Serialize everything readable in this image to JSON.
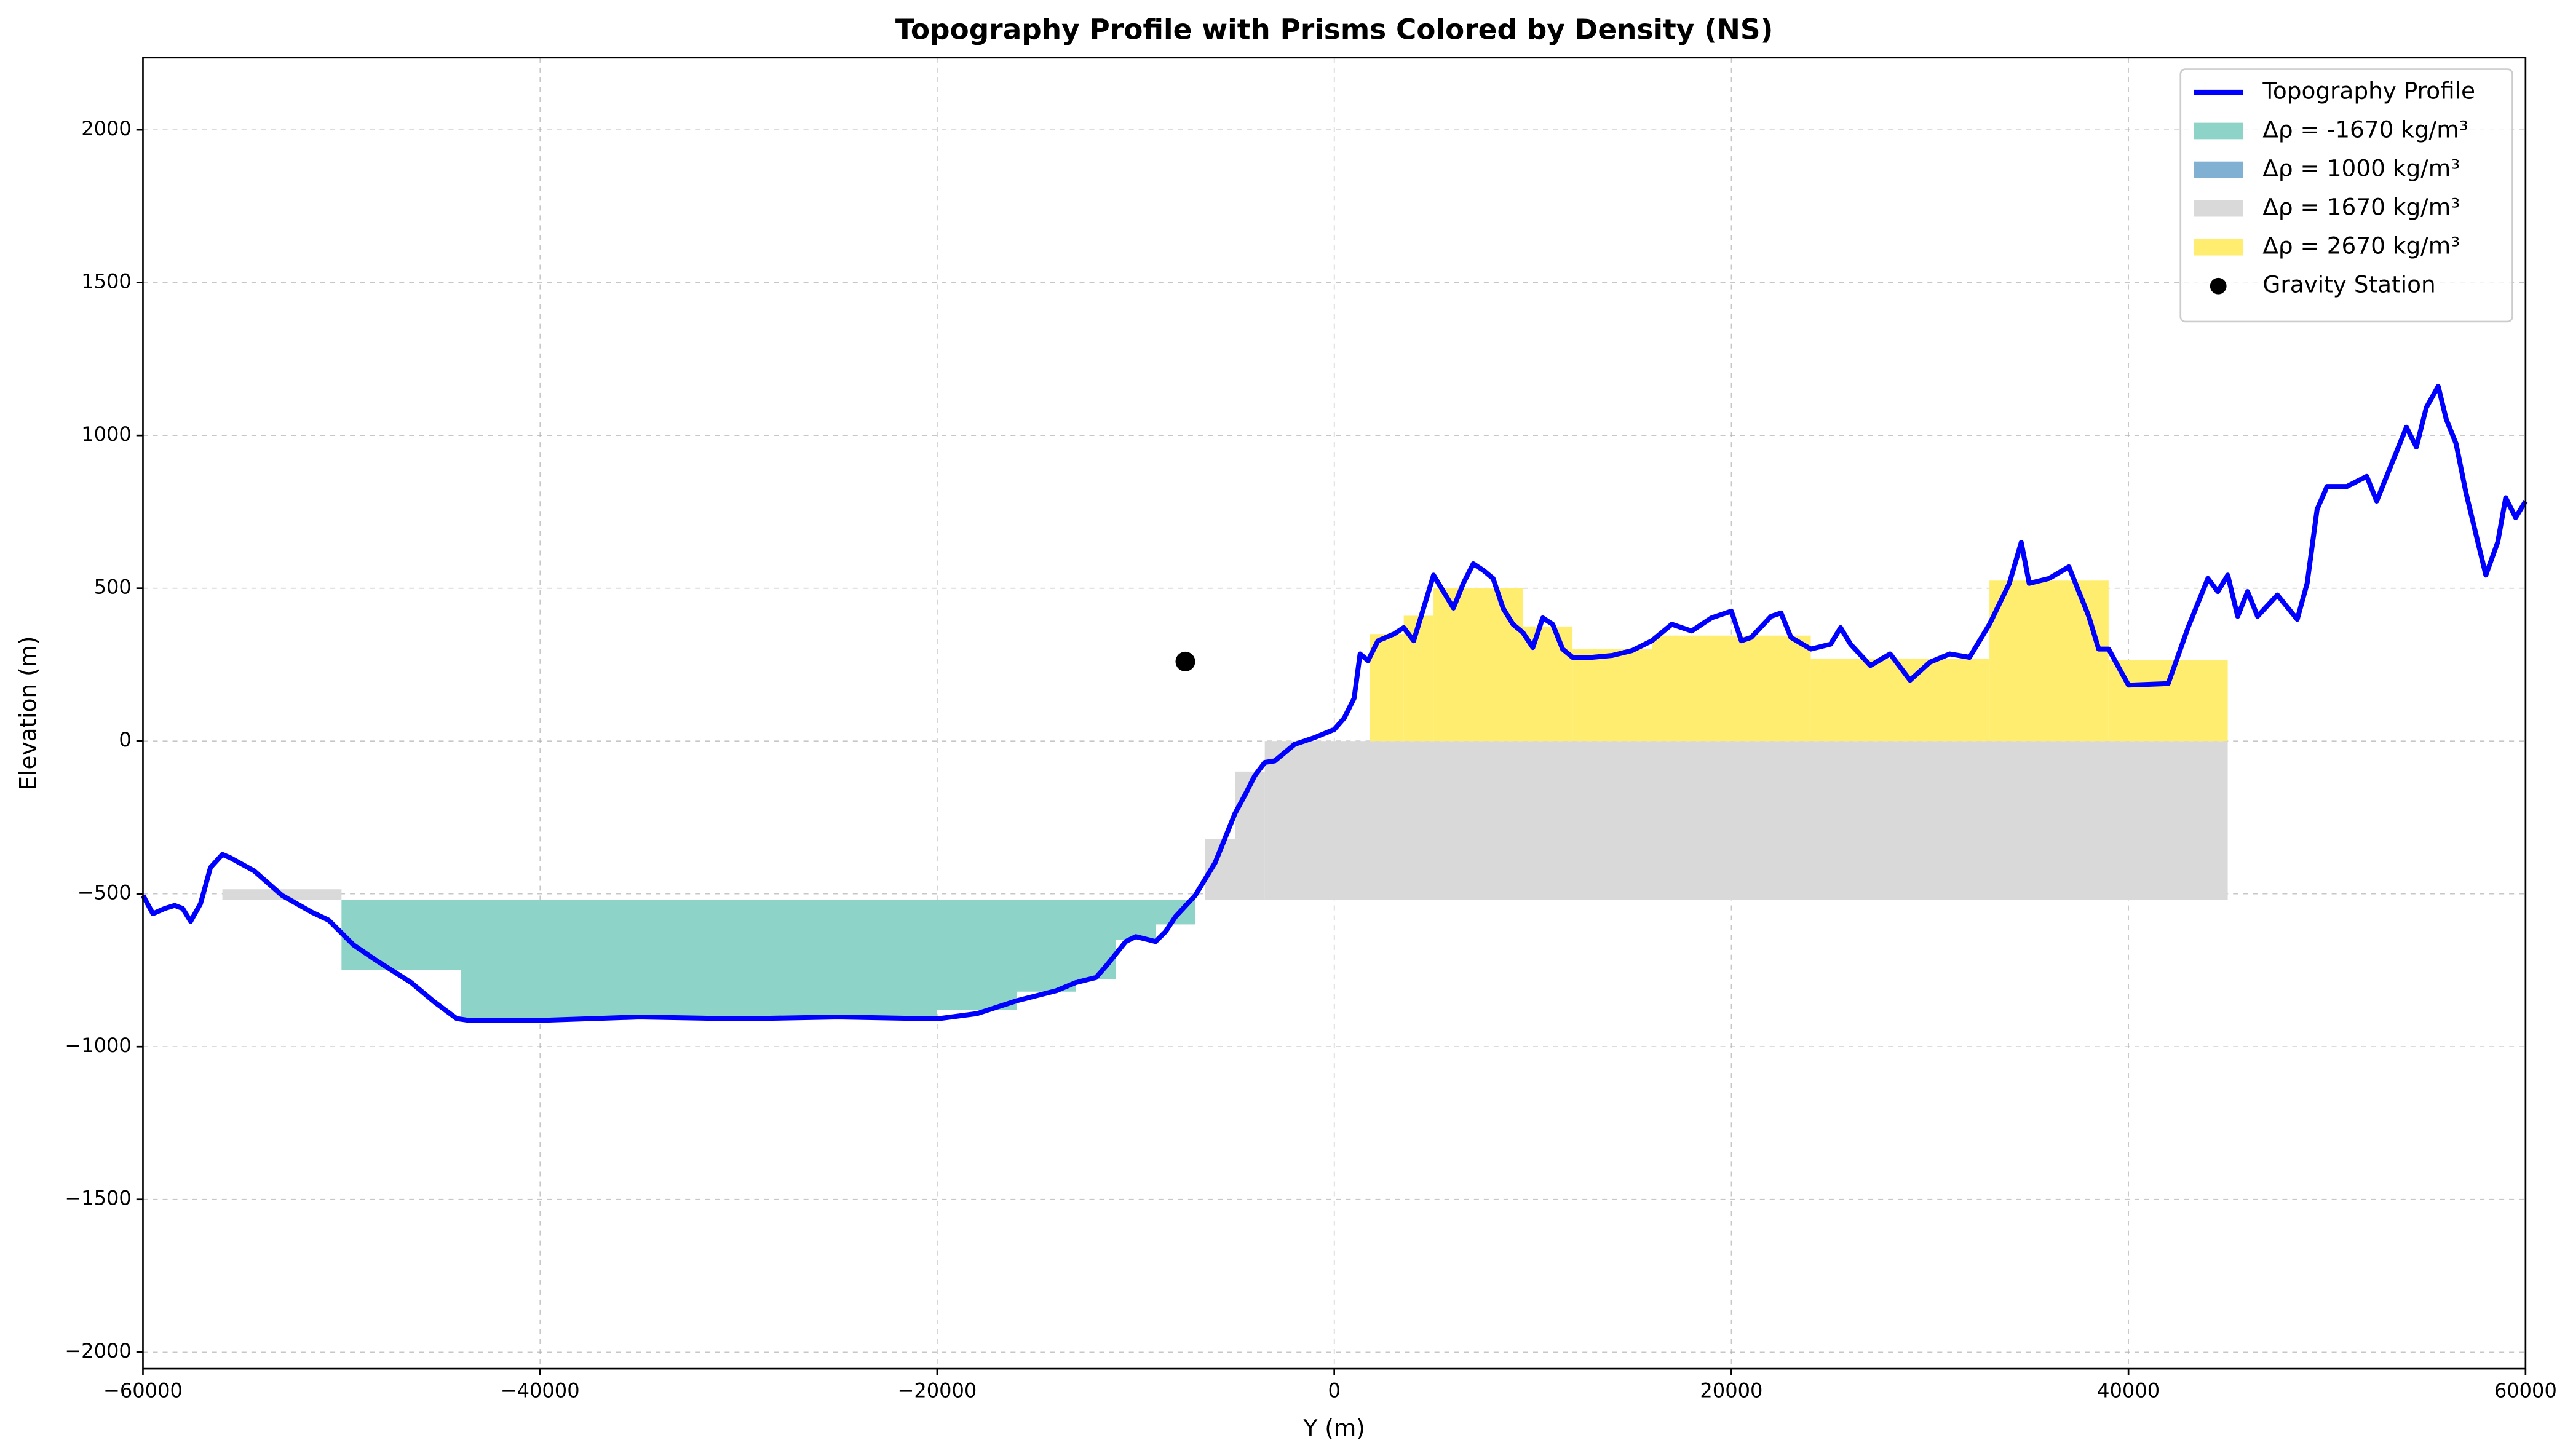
{
  "chart_data": {
    "type": "line",
    "title": "Topography Profile with Prisms Colored by Density (NS)",
    "xlabel": "Y (m)",
    "ylabel": "Elevation (m)",
    "xlim": [
      -60000,
      60000
    ],
    "ylim": [
      -2054,
      2236
    ],
    "xticks": [
      {
        "value": -60000,
        "label": "−60000"
      },
      {
        "value": -40000,
        "label": "−40000"
      },
      {
        "value": -20000,
        "label": "−20000"
      },
      0,
      20000,
      40000,
      60000
    ],
    "yticks": [
      {
        "value": -2000,
        "label": "−2000"
      },
      {
        "value": -1500,
        "label": "−1500"
      },
      {
        "value": -1000,
        "label": "−1000"
      },
      {
        "value": -500,
        "label": "−500"
      },
      0,
      500,
      1000,
      1500,
      2000
    ],
    "grid": true,
    "legend": "upper right",
    "series": [
      {
        "name": "Topography Profile",
        "color": "#0000ff",
        "x": [
          -60000,
          -59500,
          -58900,
          -58400,
          -58000,
          -57600,
          -57100,
          -56600,
          -56000,
          -55600,
          -54400,
          -53000,
          -51500,
          -50650,
          -49400,
          -48200,
          -46500,
          -45300,
          -44200,
          -43600,
          -40000,
          -35000,
          -30000,
          -25000,
          -20000,
          -18000,
          -16000,
          -14000,
          -13000,
          -12000,
          -11500,
          -10500,
          -10000,
          -9000,
          -8500,
          -8000,
          -7000,
          -6000,
          -5000,
          -4500,
          -4000,
          -3500,
          -3000,
          -2000,
          -1000,
          0,
          500,
          1000,
          1300,
          1700,
          2200,
          3000,
          3500,
          4000,
          4500,
          5000,
          5500,
          6000,
          6500,
          7000,
          7500,
          8000,
          8500,
          9000,
          9500,
          10000,
          10500,
          11000,
          11500,
          12000,
          13000,
          14000,
          15000,
          16000,
          17000,
          18000,
          19000,
          20000,
          20500,
          21000,
          22000,
          22500,
          23000,
          24000,
          25000,
          25500,
          26000,
          27000,
          28000,
          29000,
          30000,
          31000,
          32000,
          33000,
          34000,
          34600,
          35000,
          36000,
          37000,
          38000,
          38500,
          39000,
          40000,
          42000,
          43000,
          44000,
          44500,
          45000,
          45500,
          46000,
          46500,
          47500,
          48500,
          49000,
          49500,
          50000,
          51000,
          52000,
          52500,
          53000,
          54000,
          54500,
          55000,
          55600,
          56000,
          56500,
          57000,
          57500,
          58000,
          58600,
          59000,
          59500,
          60000
        ],
        "values": [
          -505,
          -565,
          -548,
          -538,
          -548,
          -590,
          -532,
          -414,
          -371,
          -382,
          -425,
          -505,
          -560,
          -586,
          -667,
          -720,
          -790,
          -855,
          -908,
          -914,
          -914,
          -903,
          -909,
          -903,
          -909,
          -892,
          -850,
          -817,
          -790,
          -774,
          -737,
          -656,
          -640,
          -656,
          -624,
          -575,
          -505,
          -398,
          -237,
          -177,
          -113,
          -70,
          -65,
          -11,
          11,
          38,
          75,
          140,
          285,
          263,
          328,
          350,
          371,
          328,
          435,
          543,
          489,
          435,
          516,
          580,
          559,
          532,
          435,
          382,
          355,
          306,
          403,
          382,
          301,
          274,
          274,
          280,
          296,
          328,
          382,
          360,
          403,
          425,
          328,
          339,
          408,
          419,
          339,
          301,
          317,
          371,
          317,
          247,
          285,
          199,
          258,
          285,
          274,
          382,
          516,
          650,
          516,
          532,
          570,
          408,
          301,
          301,
          183,
          188,
          371,
          532,
          489,
          543,
          408,
          489,
          408,
          478,
          398,
          516,
          758,
          833,
          833,
          866,
          785,
          866,
          1027,
          962,
          1091,
          1161,
          1054,
          973,
          812,
          677,
          543,
          651,
          796,
          731,
          785
        ]
      }
    ],
    "prisms": [
      {
        "name": "Δρ = -1670 kg/m³",
        "color": "#8dd3c7",
        "rects": [
          {
            "x": [
              -50000,
              -44000
            ],
            "values": [
              -750,
              -520
            ]
          },
          {
            "x": [
              -44000,
              -20000
            ],
            "values": [
              -910,
              -520
            ]
          },
          {
            "x": [
              -20000,
              -16000
            ],
            "values": [
              -880,
              -520
            ]
          },
          {
            "x": [
              -16000,
              -13000
            ],
            "values": [
              -820,
              -520
            ]
          },
          {
            "x": [
              -13000,
              -11000
            ],
            "values": [
              -780,
              -520
            ]
          },
          {
            "x": [
              -11000,
              -9000
            ],
            "values": [
              -650,
              -520
            ]
          },
          {
            "x": [
              -9000,
              -7000
            ],
            "values": [
              -600,
              -520
            ]
          }
        ]
      },
      {
        "name": "Δρ = 1000 kg/m³",
        "color": "#80b1d3",
        "rects": []
      },
      {
        "name": "Δρ = 1670 kg/m³",
        "color": "#d9d9d9",
        "rects": [
          {
            "x": [
              -56000,
              -50000
            ],
            "values": [
              -520,
              -485
            ]
          },
          {
            "x": [
              -6500,
              -5000
            ],
            "values": [
              -520,
              -320
            ]
          },
          {
            "x": [
              -5000,
              -3500
            ],
            "values": [
              -520,
              -100
            ]
          },
          {
            "x": [
              -3500,
              45000
            ],
            "values": [
              -520,
              0
            ]
          }
        ]
      },
      {
        "name": "Δρ = 2670 kg/m³",
        "color": "#ffed6f",
        "rects": [
          {
            "x": [
              1800,
              3500
            ],
            "values": [
              0,
              350
            ]
          },
          {
            "x": [
              3500,
              5000
            ],
            "values": [
              0,
              410
            ]
          },
          {
            "x": [
              5000,
              9500
            ],
            "values": [
              0,
              500
            ]
          },
          {
            "x": [
              9500,
              12000
            ],
            "values": [
              0,
              375
            ]
          },
          {
            "x": [
              12000,
              16000
            ],
            "values": [
              0,
              300
            ]
          },
          {
            "x": [
              16000,
              24000
            ],
            "values": [
              0,
              345
            ]
          },
          {
            "x": [
              24000,
              33000
            ],
            "values": [
              0,
              270
            ]
          },
          {
            "x": [
              33000,
              39000
            ],
            "values": [
              0,
              525
            ]
          },
          {
            "x": [
              39000,
              45000
            ],
            "values": [
              0,
              265
            ]
          }
        ]
      }
    ],
    "station": {
      "name": "Gravity Station",
      "color": "#000000",
      "x": -7500,
      "y": 260
    }
  }
}
